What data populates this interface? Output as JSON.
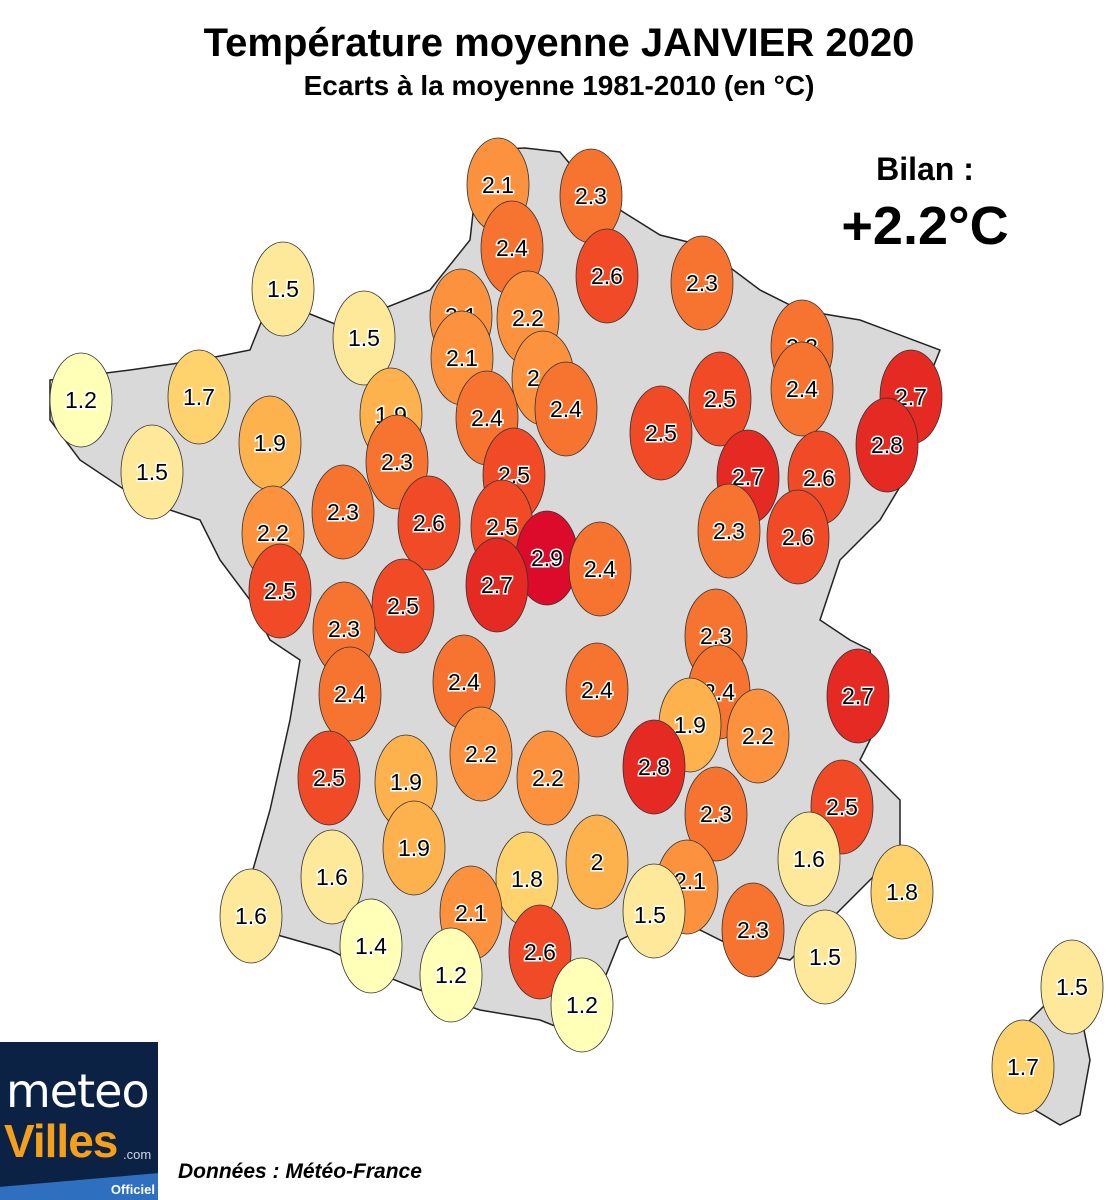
{
  "title": "Température moyenne JANVIER 2020",
  "subtitle": "Ecarts à la moyenne 1981-2010 (en °C)",
  "bilan": {
    "label": "Bilan :",
    "value": "+2.2°C"
  },
  "source": "Données : Météo-France",
  "logo": {
    "line1": "meteo",
    "line2": "Villes",
    "suffix": ".com",
    "badge": "Officiel"
  },
  "colors": {
    "land": "#d9d9d9",
    "border": "#222222",
    "scale": [
      [
        "1.2",
        "#ffffb8"
      ],
      [
        "1.5",
        "#fee99a"
      ],
      [
        "1.7",
        "#fed36e"
      ],
      [
        "1.9",
        "#fdb24e"
      ],
      [
        "2.1",
        "#fd923e"
      ],
      [
        "2.3",
        "#f6742f"
      ],
      [
        "2.5",
        "#f04a26"
      ],
      [
        "2.7",
        "#e42a22"
      ],
      [
        "2.9",
        "#dc0b2c"
      ]
    ]
  },
  "stations": [
    "2.1",
    "2.3",
    "2.4",
    "2.6",
    "2.3",
    "1.5",
    "1.5",
    "2.1",
    "2.2",
    "2.1",
    "2.1",
    "2.3",
    "2.4",
    "2.7",
    "1.2",
    "1.7",
    "1.9",
    "2.4",
    "2.4",
    "2.5",
    "2.5",
    "2.8",
    "1.9",
    "1.5",
    "2.3",
    "2.5",
    "2.7",
    "2.6",
    "2.3",
    "2.6",
    "2.5",
    "2.2",
    "2.3",
    "2.6",
    "2.9",
    "2.4",
    "2.7",
    "2.5",
    "2.5",
    "2.3",
    "2.3",
    "2.4",
    "2.4",
    "2.4",
    "2.7",
    "2.4",
    "1.9",
    "2.2",
    "2.2",
    "2.5",
    "1.9",
    "2.2",
    "2.8",
    "2.3",
    "2.5",
    "1.9",
    "1.6",
    "2",
    "1.8",
    "1.6",
    "2.1",
    "1.8",
    "1.6",
    "2.1",
    "1.5",
    "2.3",
    "1.4",
    "2.6",
    "1.5",
    "1.2",
    "1.2",
    "1.5",
    "1.7"
  ]
}
